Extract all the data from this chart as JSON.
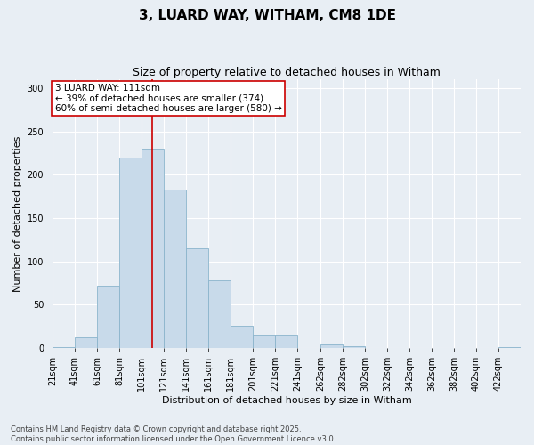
{
  "title": "3, LUARD WAY, WITHAM, CM8 1DE",
  "subtitle": "Size of property relative to detached houses in Witham",
  "xlabel": "Distribution of detached houses by size in Witham",
  "ylabel": "Number of detached properties",
  "bar_color": "#c8daea",
  "bar_edge_color": "#8ab4cc",
  "background_color": "#e8eef4",
  "grid_color": "#ffffff",
  "bin_starts": [
    21,
    41,
    61,
    81,
    101,
    121,
    141,
    161,
    181,
    201,
    221,
    241,
    262,
    282,
    302,
    322,
    342,
    362,
    382,
    402,
    422
  ],
  "bin_width": 20,
  "bar_heights": [
    1,
    12,
    72,
    220,
    230,
    183,
    115,
    78,
    26,
    15,
    15,
    0,
    4,
    2,
    0,
    0,
    0,
    0,
    0,
    0,
    1
  ],
  "property_size": 111,
  "red_line_color": "#cc0000",
  "annotation_text": "3 LUARD WAY: 111sqm\n← 39% of detached houses are smaller (374)\n60% of semi-detached houses are larger (580) →",
  "annotation_box_color": "#ffffff",
  "annotation_box_edge": "#cc0000",
  "ylim": [
    0,
    310
  ],
  "yticks": [
    0,
    50,
    100,
    150,
    200,
    250,
    300
  ],
  "xtick_labels": [
    "21sqm",
    "41sqm",
    "61sqm",
    "81sqm",
    "101sqm",
    "121sqm",
    "141sqm",
    "161sqm",
    "181sqm",
    "201sqm",
    "221sqm",
    "241sqm",
    "262sqm",
    "282sqm",
    "302sqm",
    "322sqm",
    "342sqm",
    "362sqm",
    "382sqm",
    "402sqm",
    "422sqm"
  ],
  "footer_text": "Contains HM Land Registry data © Crown copyright and database right 2025.\nContains public sector information licensed under the Open Government Licence v3.0.",
  "title_fontsize": 11,
  "subtitle_fontsize": 9,
  "axis_label_fontsize": 8,
  "tick_fontsize": 7,
  "annotation_fontsize": 7.5
}
